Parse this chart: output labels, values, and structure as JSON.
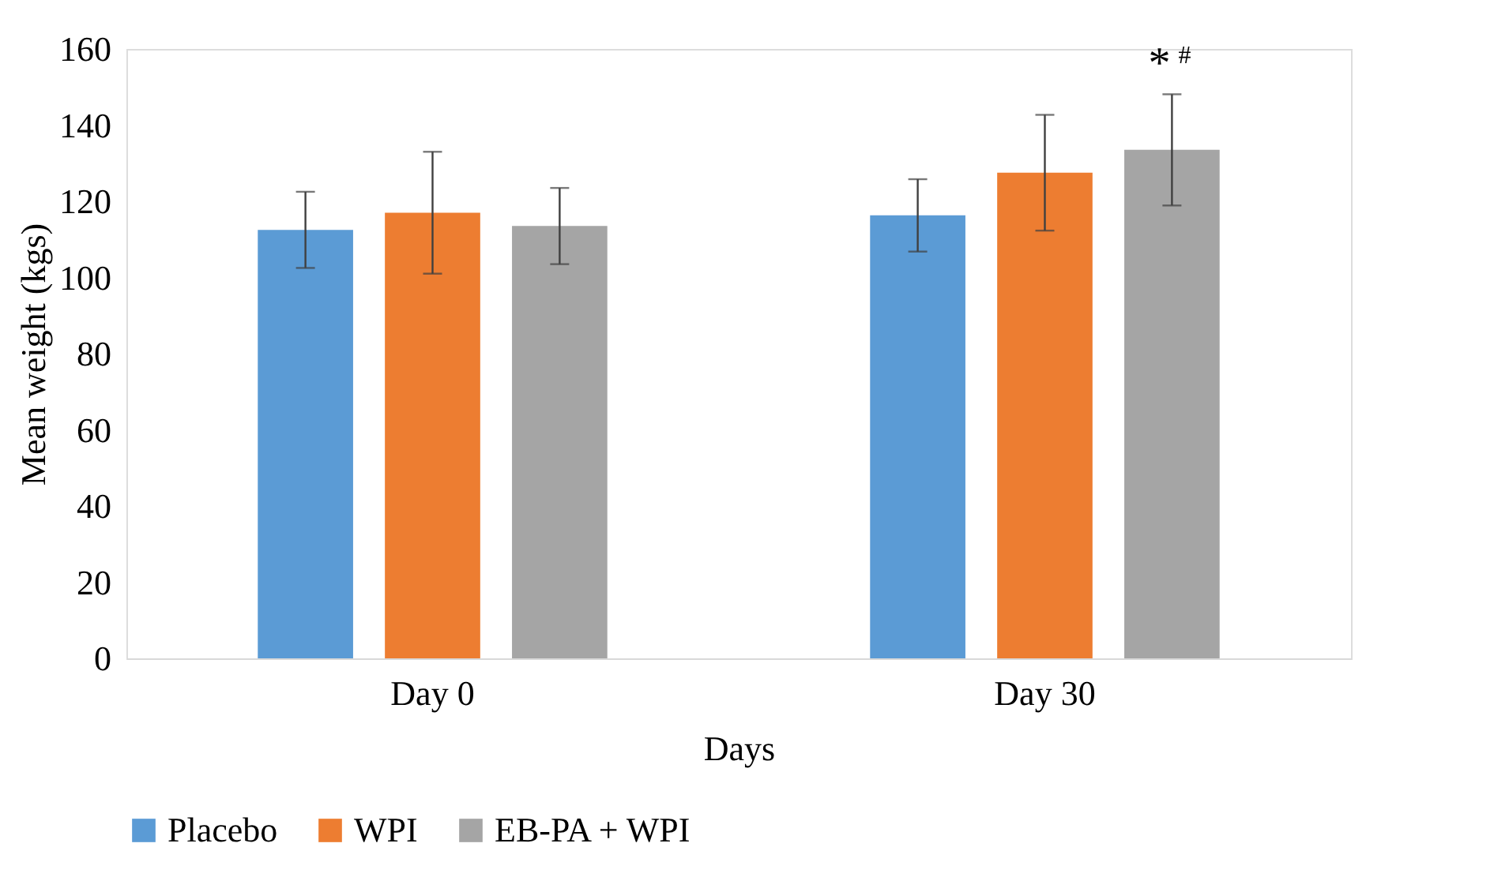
{
  "chart_data": {
    "type": "bar",
    "xlabel": "Days",
    "ylabel": "Mean weight (kgs)",
    "categories": [
      "Day 0",
      "Day 30"
    ],
    "series": [
      {
        "name": "Placebo",
        "color": "#5b9bd5",
        "values": [
          112.5,
          116.3
        ],
        "errors": [
          10,
          9.5
        ]
      },
      {
        "name": "WPI",
        "color": "#ed7d31",
        "values": [
          117,
          127.5
        ],
        "errors": [
          16,
          15.2
        ]
      },
      {
        "name": "EB-PA + WPI",
        "color": "#a5a5a5",
        "values": [
          113.5,
          133.5
        ],
        "errors": [
          10,
          14.6
        ]
      }
    ],
    "annotations": [
      "*",
      "#"
    ],
    "ylim": [
      0,
      160
    ],
    "yticks": [
      0,
      20,
      40,
      60,
      80,
      100,
      120,
      140,
      160
    ],
    "grid": false,
    "legend": "bottom"
  }
}
